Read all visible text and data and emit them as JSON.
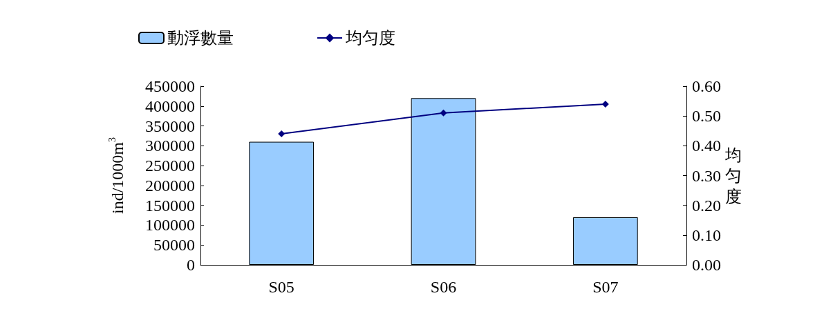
{
  "chart_data": {
    "type": "bar",
    "categories": [
      "S05",
      "S06",
      "S07"
    ],
    "series": [
      {
        "name": "動浮數量",
        "color": "#99ccff",
        "values": [
          310000,
          420000,
          120000
        ]
      },
      {
        "name": "均匀度",
        "type": "line",
        "axis": "y2",
        "color": "#000080",
        "values": [
          0.44,
          0.51,
          0.54
        ]
      }
    ],
    "ylabel": "ind/1000m$^{3}$",
    "y2label": "均匀度",
    "ylim": [
      0,
      450000
    ],
    "yticks": [
      0,
      50000,
      100000,
      150000,
      200000,
      250000,
      300000,
      350000,
      400000,
      450000
    ],
    "y2lim": [
      0,
      0.6
    ],
    "y2ticks": [
      {
        "value": 0,
        "label": "0.00"
      },
      {
        "value": 0.1,
        "label": "0.10"
      },
      {
        "value": 0.2,
        "label": "0.20"
      },
      {
        "value": 0.3,
        "label": "0.30"
      },
      {
        "value": 0.4,
        "label": "0.40"
      },
      {
        "value": 0.5,
        "label": "0.50"
      },
      {
        "value": 0.6,
        "label": "0.60"
      }
    ],
    "marker": "diamond",
    "legend": "top left",
    "grid": false
  }
}
